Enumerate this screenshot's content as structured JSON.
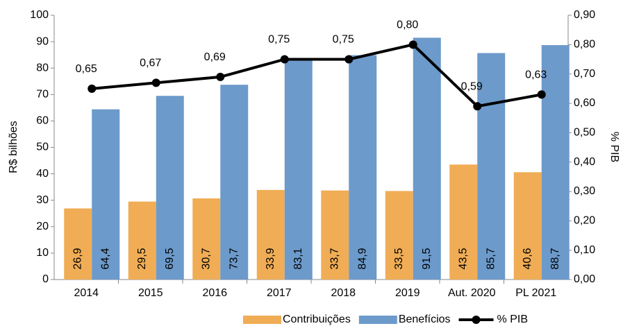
{
  "chart_data": {
    "type": "bar_line",
    "categories": [
      "2014",
      "2015",
      "2016",
      "2017",
      "2018",
      "2019",
      "Aut. 2020",
      "PL 2021"
    ],
    "series": [
      {
        "name": "Contribuições",
        "color": "#f0ad55",
        "type": "bar",
        "values": [
          26.9,
          29.5,
          30.7,
          33.9,
          33.7,
          33.5,
          43.5,
          40.6
        ],
        "value_labels": [
          "26,9",
          "29,5",
          "30,7",
          "33,9",
          "33,7",
          "33,5",
          "43,5",
          "40,6"
        ]
      },
      {
        "name": "Benefícios",
        "color": "#6c9acb",
        "type": "bar",
        "values": [
          64.4,
          69.5,
          73.7,
          83.1,
          84.9,
          91.5,
          85.7,
          88.7
        ],
        "value_labels": [
          "64,4",
          "69,5",
          "73,7",
          "83,1",
          "84,9",
          "91,5",
          "85,7",
          "88,7"
        ]
      },
      {
        "name": "% PIB",
        "color": "#000000",
        "type": "line",
        "axis": "y2",
        "values": [
          0.65,
          0.67,
          0.69,
          0.75,
          0.75,
          0.8,
          0.59,
          0.63
        ],
        "value_labels": [
          "0,65",
          "0,67",
          "0,69",
          "0,75",
          "0,75",
          "0,80",
          "0,59",
          "0,63"
        ]
      }
    ],
    "ylabel": "R$ bilhões",
    "y2label": "% PIB",
    "ylim": [
      0,
      100
    ],
    "yticks": [
      0,
      10,
      20,
      30,
      40,
      50,
      60,
      70,
      80,
      90,
      100
    ],
    "y2lim": [
      0,
      0.9
    ],
    "y2ticks": [
      {
        "value": 0,
        "label": "0,00"
      },
      {
        "value": 0.1,
        "label": "0,10"
      },
      {
        "value": 0.2,
        "label": "0,20"
      },
      {
        "value": 0.3,
        "label": "0,30"
      },
      {
        "value": 0.4,
        "label": "0,40"
      },
      {
        "value": 0.5,
        "label": "0,50"
      },
      {
        "value": 0.6,
        "label": "0,60"
      },
      {
        "value": 0.7,
        "label": "0,70"
      },
      {
        "value": 0.8,
        "label": "0,80"
      },
      {
        "value": 0.9,
        "label": "0,90"
      }
    ],
    "legend": "bottom"
  }
}
